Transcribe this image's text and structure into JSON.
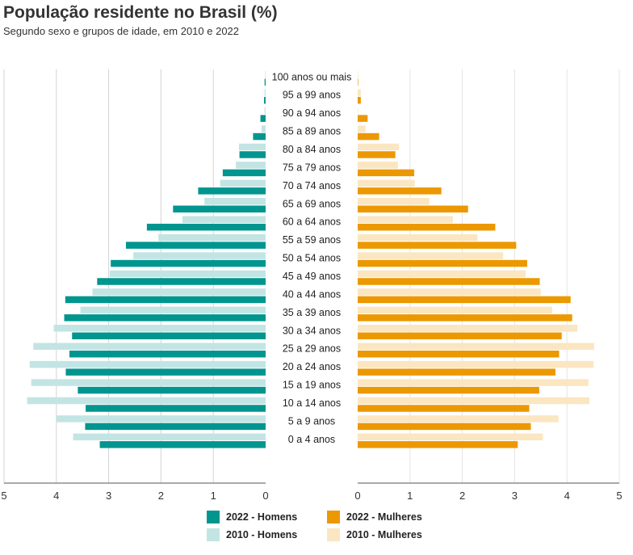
{
  "title": "População residente no Brasil (%)",
  "subtitle": "Segundo sexo e grupos de idade, em 2010 e 2022",
  "colors": {
    "men2022": "#00958f",
    "men2010": "#c2e5e4",
    "women2022": "#ec9800",
    "women2010": "#fbe6c2"
  },
  "chart_data": {
    "type": "bar",
    "orientation": "horizontal-pyramid",
    "title": "População residente no Brasil (%)",
    "subtitle": "Segundo sexo e grupos de idade, em 2010 e 2022",
    "categories": [
      "100 anos ou mais",
      "95 a 99 anos",
      "90 a 94 anos",
      "85 a 89 anos",
      "80 a 84 anos",
      "75 a 79 anos",
      "70 a 74 anos",
      "65 a 69 anos",
      "60 a 64 anos",
      "55 a 59 anos",
      "50 a 54 anos",
      "45 a 49 anos",
      "40 a 44 anos",
      "35 a 39 anos",
      "30 a 34 anos",
      "25 a 29 anos",
      "20 a 24 anos",
      "15 a 19 anos",
      "10 a 14 anos",
      "5 a 9 anos",
      "0 a 4 anos"
    ],
    "series": [
      {
        "name": "2022 - Homens",
        "side": "left",
        "values": [
          0.02,
          0.03,
          0.1,
          0.24,
          0.5,
          0.82,
          1.29,
          1.77,
          2.27,
          2.67,
          2.96,
          3.22,
          3.83,
          3.85,
          3.7,
          3.75,
          3.82,
          3.59,
          3.44,
          3.45,
          3.17
        ]
      },
      {
        "name": "2010 - Homens",
        "side": "left",
        "values": [
          0.01,
          0.02,
          0.02,
          0.08,
          0.51,
          0.57,
          0.87,
          1.17,
          1.59,
          2.05,
          2.53,
          2.98,
          3.31,
          3.54,
          4.05,
          4.44,
          4.51,
          4.48,
          4.56,
          4.0,
          3.68
        ]
      },
      {
        "name": "2022 - Mulheres",
        "side": "right",
        "values": [
          0.01,
          0.06,
          0.19,
          0.41,
          0.72,
          1.08,
          1.6,
          2.11,
          2.63,
          3.03,
          3.24,
          3.48,
          4.07,
          4.1,
          3.9,
          3.85,
          3.78,
          3.47,
          3.28,
          3.31,
          3.06
        ]
      },
      {
        "name": "2010 - Mulheres",
        "side": "right",
        "values": [
          0.01,
          0.06,
          0.01,
          0.15,
          0.79,
          0.77,
          1.09,
          1.37,
          1.82,
          2.29,
          2.78,
          3.21,
          3.5,
          3.72,
          4.2,
          4.52,
          4.51,
          4.41,
          4.43,
          3.84,
          3.54
        ]
      }
    ],
    "left_ticks": [
      "5",
      "4",
      "3",
      "2",
      "1",
      "0"
    ],
    "right_ticks": [
      "0",
      "1",
      "2",
      "3",
      "4",
      "5"
    ],
    "xlim": [
      0,
      5
    ],
    "grid": true,
    "legend_placement": "bottom"
  },
  "legend": [
    "2022 - Homens",
    "2010 - Homens",
    "2022 - Mulheres",
    "2010 - Mulheres"
  ]
}
